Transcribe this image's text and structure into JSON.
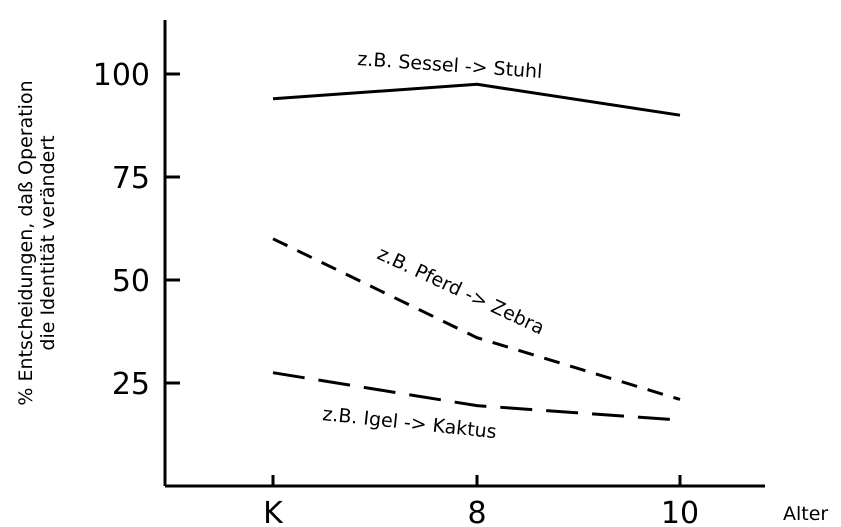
{
  "chart_data": {
    "type": "line",
    "categories": [
      "K",
      "8",
      "10"
    ],
    "xlabel": "Alter",
    "ylabel_line1": "% Entscheidungen, daß Operation",
    "ylabel_line2": "die Identität verändert",
    "ylim": [
      0,
      112
    ],
    "yticks": [
      25,
      50,
      75,
      100
    ],
    "grid": false,
    "series": [
      {
        "name": "z.B. Sessel -> Stuhl",
        "values": [
          94,
          97.5,
          90
        ],
        "style": "solid"
      },
      {
        "name": "z.B. Pferd -> Zebra",
        "values": [
          60,
          36,
          21
        ],
        "style": "short-dash"
      },
      {
        "name": "z.B. Igel -> Kaktus",
        "values": [
          27.5,
          19.5,
          16
        ],
        "style": "long-dash"
      }
    ]
  }
}
